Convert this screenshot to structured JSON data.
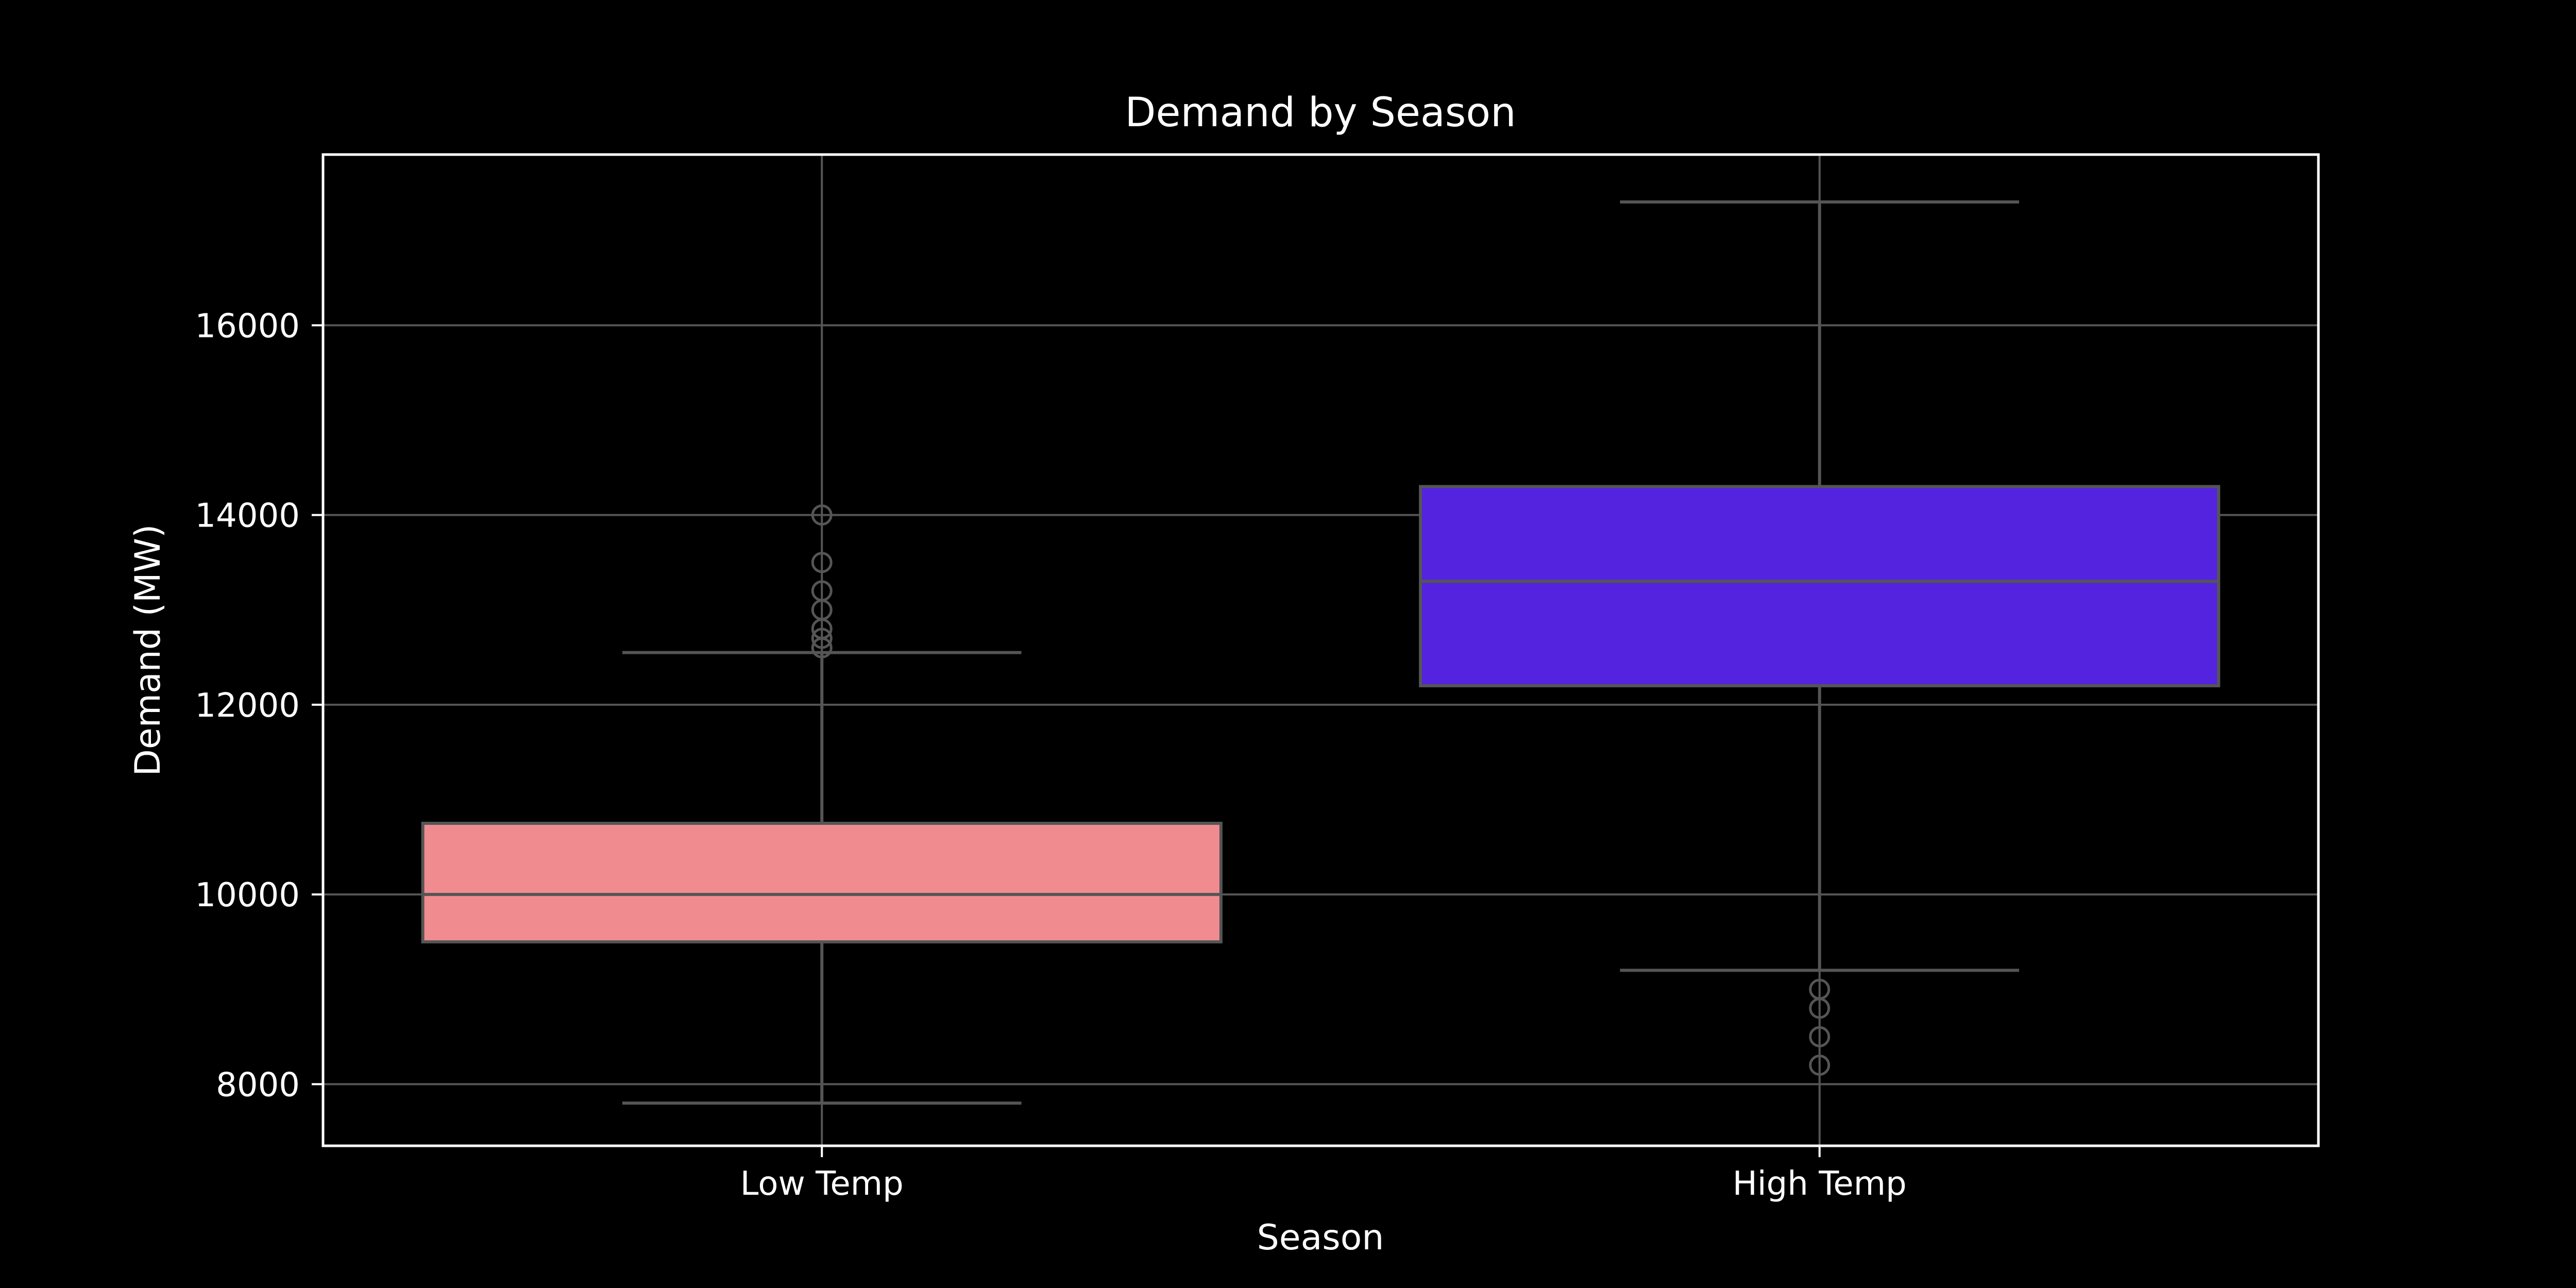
{
  "chart_data": {
    "type": "box",
    "title": "Demand by Season",
    "xlabel": "Season",
    "ylabel": "Demand (MW)",
    "categories": [
      "Low Temp",
      "High Temp"
    ],
    "ylim": [
      7350,
      17800
    ],
    "yticks": [
      8000,
      10000,
      12000,
      14000,
      16000
    ],
    "grid": true,
    "boxes": [
      {
        "category": "Low Temp",
        "whisker_low": 7800,
        "q1": 9500,
        "median": 10000,
        "q3": 10750,
        "whisker_high": 12550,
        "outliers": [
          12600,
          12700,
          12800,
          13000,
          13200,
          13500,
          14000
        ],
        "color": "#f08c90"
      },
      {
        "category": "High Temp",
        "whisker_low": 9200,
        "q1": 12200,
        "median": 13300,
        "q3": 14300,
        "whisker_high": 17300,
        "outliers": [
          8200,
          8500,
          8800,
          9000
        ],
        "color": "#5423df"
      }
    ],
    "colors": {
      "background": "#000000",
      "frame": "#ffffff",
      "grid": "#555555",
      "box_edge": "#555555"
    }
  }
}
